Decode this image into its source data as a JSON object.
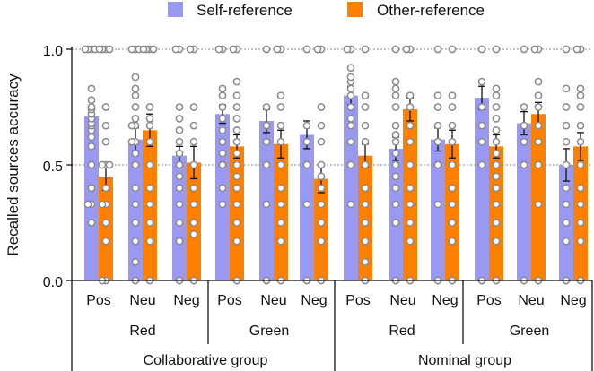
{
  "chart_data": {
    "type": "bar",
    "title": "",
    "xlabel": "",
    "ylabel": "Recalled sources accuracy",
    "ylim": [
      0,
      1.0
    ],
    "yticks": [
      "0.0",
      "0.5",
      "1.0"
    ],
    "legend": {
      "position": "top",
      "entries": [
        {
          "name": "Self-reference",
          "color": "#9999f2"
        },
        {
          "name": "Other-reference",
          "color": "#ff8000"
        }
      ]
    },
    "groups": [
      {
        "label": "Collaborative group",
        "subgroups": [
          {
            "label": "Red",
            "valences": [
              {
                "label": "Pos",
                "self": {
                  "mean": 0.71,
                  "err": 0.04,
                  "points": [
                    0.58,
                    0.62,
                    0.65,
                    0.67,
                    0.68,
                    0.7,
                    0.72,
                    0.74,
                    0.75,
                    0.78,
                    0.83,
                    0.5,
                    0.4,
                    0.33,
                    0.33,
                    0.25,
                    1.0,
                    1.0,
                    1.0,
                    1.0
                  ]
                },
                "other": {
                  "mean": 0.45,
                  "err": 0.06,
                  "points": [
                    0.0,
                    0.0,
                    0.17,
                    0.25,
                    0.33,
                    0.33,
                    0.4,
                    0.5,
                    0.5,
                    0.5,
                    0.6,
                    0.67,
                    0.75,
                    1.0,
                    1.0,
                    1.0,
                    1.0
                  ]
                }
              },
              {
                "label": "Neu",
                "self": {
                  "mean": 0.61,
                  "err": 0.05,
                  "points": [
                    0.0,
                    0.08,
                    0.17,
                    0.25,
                    0.33,
                    0.4,
                    0.5,
                    0.55,
                    0.6,
                    0.6,
                    0.67,
                    0.67,
                    0.7,
                    0.75,
                    0.8,
                    0.83,
                    0.88,
                    1.0,
                    1.0,
                    1.0
                  ]
                },
                "other": {
                  "mean": 0.65,
                  "err": 0.07,
                  "points": [
                    0.0,
                    0.17,
                    0.25,
                    0.33,
                    0.4,
                    0.5,
                    0.6,
                    0.67,
                    0.7,
                    0.75,
                    1.0,
                    1.0,
                    1.0,
                    1.0
                  ]
                }
              },
              {
                "label": "Neg",
                "self": {
                  "mean": 0.54,
                  "err": 0.04,
                  "points": [
                    0.0,
                    0.17,
                    0.25,
                    0.33,
                    0.4,
                    0.45,
                    0.5,
                    0.55,
                    0.6,
                    0.65,
                    0.7,
                    0.75,
                    1.0,
                    1.0
                  ]
                },
                "other": {
                  "mean": 0.51,
                  "err": 0.07,
                  "points": [
                    0.0,
                    0.2,
                    0.25,
                    0.33,
                    0.4,
                    0.5,
                    0.6,
                    0.67,
                    0.75,
                    1.0,
                    1.0
                  ]
                }
              }
            ]
          },
          {
            "label": "Green",
            "valences": [
              {
                "label": "Pos",
                "self": {
                  "mean": 0.72,
                  "err": 0.04,
                  "points": [
                    0.33,
                    0.4,
                    0.5,
                    0.55,
                    0.6,
                    0.65,
                    0.7,
                    0.75,
                    0.8,
                    0.83,
                    1.0,
                    1.0
                  ]
                },
                "other": {
                  "mean": 0.58,
                  "err": 0.05,
                  "points": [
                    0.0,
                    0.17,
                    0.25,
                    0.33,
                    0.4,
                    0.45,
                    0.5,
                    0.55,
                    0.6,
                    0.65,
                    0.7,
                    0.75,
                    0.8,
                    0.86,
                    1.0,
                    1.0
                  ]
                }
              },
              {
                "label": "Neu",
                "self": {
                  "mean": 0.69,
                  "err": 0.05,
                  "points": [
                    0.0,
                    0.33,
                    0.5,
                    0.6,
                    0.67,
                    0.75,
                    1.0
                  ]
                },
                "other": {
                  "mean": 0.59,
                  "err": 0.06,
                  "points": [
                    0.0,
                    0.17,
                    0.25,
                    0.33,
                    0.4,
                    0.5,
                    0.6,
                    0.67,
                    0.75,
                    0.8,
                    1.0,
                    1.0
                  ]
                }
              },
              {
                "label": "Neg",
                "self": {
                  "mean": 0.63,
                  "err": 0.06,
                  "points": [
                    0.0,
                    0.33,
                    0.5,
                    0.6,
                    0.67,
                    1.0
                  ]
                },
                "other": {
                  "mean": 0.44,
                  "err": 0.06,
                  "points": [
                    0.0,
                    0.17,
                    0.25,
                    0.33,
                    0.4,
                    0.45,
                    0.5,
                    0.6,
                    0.67,
                    0.75,
                    1.0,
                    1.0
                  ]
                }
              }
            ]
          }
        ]
      },
      {
        "label": "Nominal group",
        "subgroups": [
          {
            "label": "Red",
            "valences": [
              {
                "label": "Pos",
                "self": {
                  "mean": 0.8,
                  "err": 0.04,
                  "points": [
                    0.33,
                    0.5,
                    0.6,
                    0.67,
                    0.7,
                    0.75,
                    0.8,
                    0.83,
                    0.86,
                    0.88,
                    0.92,
                    1.0,
                    1.0
                  ]
                },
                "other": {
                  "mean": 0.54,
                  "err": 0.05,
                  "points": [
                    0.0,
                    0.08,
                    0.17,
                    0.25,
                    0.33,
                    0.4,
                    0.5,
                    0.6,
                    0.67,
                    0.75,
                    0.8,
                    1.0
                  ]
                }
              },
              {
                "label": "Neu",
                "self": {
                  "mean": 0.57,
                  "err": 0.05,
                  "points": [
                    0.0,
                    0.25,
                    0.33,
                    0.4,
                    0.45,
                    0.5,
                    0.55,
                    0.6,
                    0.63,
                    0.67,
                    0.75,
                    0.8,
                    0.83,
                    0.86,
                    1.0
                  ]
                },
                "other": {
                  "mean": 0.74,
                  "err": 0.05,
                  "points": [
                    0.0,
                    0.17,
                    0.25,
                    0.33,
                    0.4,
                    0.5,
                    0.6,
                    0.67,
                    0.75,
                    0.8,
                    1.0,
                    1.0
                  ]
                }
              },
              {
                "label": "Neg",
                "self": {
                  "mean": 0.61,
                  "err": 0.05,
                  "points": [
                    0.0,
                    0.33,
                    0.5,
                    0.6,
                    0.67,
                    0.75,
                    0.8,
                    1.0
                  ]
                },
                "other": {
                  "mean": 0.59,
                  "err": 0.06,
                  "points": [
                    0.0,
                    0.17,
                    0.25,
                    0.33,
                    0.4,
                    0.5,
                    0.6,
                    0.67,
                    0.75,
                    0.8,
                    1.0
                  ]
                }
              }
            ]
          },
          {
            "label": "Green",
            "valences": [
              {
                "label": "Pos",
                "self": {
                  "mean": 0.79,
                  "err": 0.05,
                  "points": [
                    0.0,
                    0.5,
                    0.6,
                    0.67,
                    0.75,
                    0.86,
                    1.0
                  ]
                },
                "other": {
                  "mean": 0.58,
                  "err": 0.05,
                  "points": [
                    0.0,
                    0.17,
                    0.25,
                    0.33,
                    0.4,
                    0.45,
                    0.5,
                    0.55,
                    0.6,
                    0.65,
                    0.7,
                    0.75,
                    0.8,
                    0.83,
                    1.0
                  ]
                }
              },
              {
                "label": "Neu",
                "self": {
                  "mean": 0.68,
                  "err": 0.05,
                  "points": [
                    0.0,
                    0.5,
                    0.6,
                    0.67,
                    0.75,
                    1.0
                  ]
                },
                "other": {
                  "mean": 0.72,
                  "err": 0.05,
                  "points": [
                    0.0,
                    0.33,
                    0.5,
                    0.6,
                    0.67,
                    0.75,
                    0.8,
                    0.86,
                    1.0,
                    1.0
                  ]
                }
              },
              {
                "label": "Neg",
                "self": {
                  "mean": 0.5,
                  "err": 0.07,
                  "points": [
                    0.0,
                    0.17,
                    0.25,
                    0.33,
                    0.4,
                    0.5,
                    0.6,
                    0.67,
                    0.75,
                    0.83,
                    1.0
                  ]
                },
                "other": {
                  "mean": 0.58,
                  "err": 0.06,
                  "points": [
                    0.0,
                    0.17,
                    0.25,
                    0.33,
                    0.4,
                    0.5,
                    0.6,
                    0.67,
                    0.75,
                    0.8,
                    0.83,
                    1.0,
                    1.0
                  ]
                }
              }
            ]
          }
        ]
      }
    ]
  }
}
